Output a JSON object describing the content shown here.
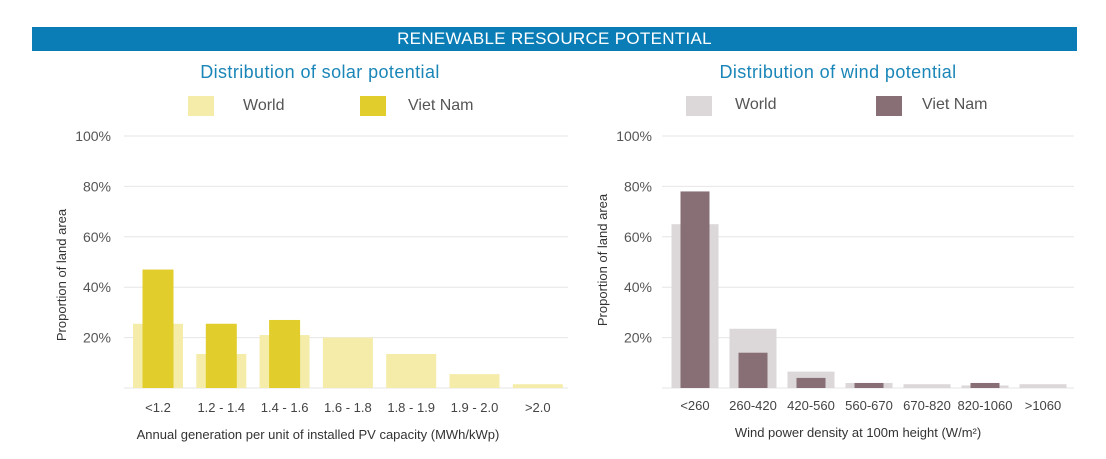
{
  "banner": "RENEWABLE RESOURCE POTENTIAL",
  "colors": {
    "banner": "#0b7db6",
    "title": "#1a86b8",
    "solar_world": "#f4eca8",
    "solar_vn": "#e1cd2c",
    "wind_world": "#dcd7d8",
    "wind_vn": "#886f75"
  },
  "chart_data": [
    {
      "type": "bar",
      "title": "Distribution of solar potential",
      "xlabel": "Annual generation per unit of installed PV capacity (MWh/kWp)",
      "ylabel": "Proportion of land area",
      "ylim": [
        0,
        100
      ],
      "yticks": [
        "100%",
        "80%",
        "60%",
        "40%",
        "20%"
      ],
      "grid": true,
      "legend": "top",
      "categories": [
        "<1.2",
        "1.2 - 1.4",
        "1.4 - 1.6",
        "1.6 - 1.8",
        "1.8 - 1.9",
        "1.9 - 2.0",
        ">2.0"
      ],
      "series": [
        {
          "name": "World",
          "values": [
            25.5,
            13.5,
            21,
            20,
            13.5,
            5.5,
            1.5
          ]
        },
        {
          "name": "Viet Nam",
          "values": [
            47,
            25.5,
            27,
            0,
            0,
            0,
            0
          ]
        }
      ]
    },
    {
      "type": "bar",
      "title": "Distribution of wind potential",
      "xlabel": "Wind power density at 100m height (W/m²)",
      "ylabel": "Proportion of land area",
      "ylim": [
        0,
        100
      ],
      "yticks": [
        "100%",
        "80%",
        "60%",
        "40%",
        "20%"
      ],
      "grid": true,
      "legend": "top",
      "categories": [
        "<260",
        "260-420",
        "420-560",
        "560-670",
        "670-820",
        "820-1060",
        ">1060"
      ],
      "series": [
        {
          "name": "World",
          "values": [
            65,
            23.5,
            6.5,
            2,
            1.5,
            1,
            1.5
          ]
        },
        {
          "name": "Viet Nam",
          "values": [
            78,
            14,
            4,
            2,
            0,
            2,
            0
          ]
        }
      ]
    }
  ]
}
